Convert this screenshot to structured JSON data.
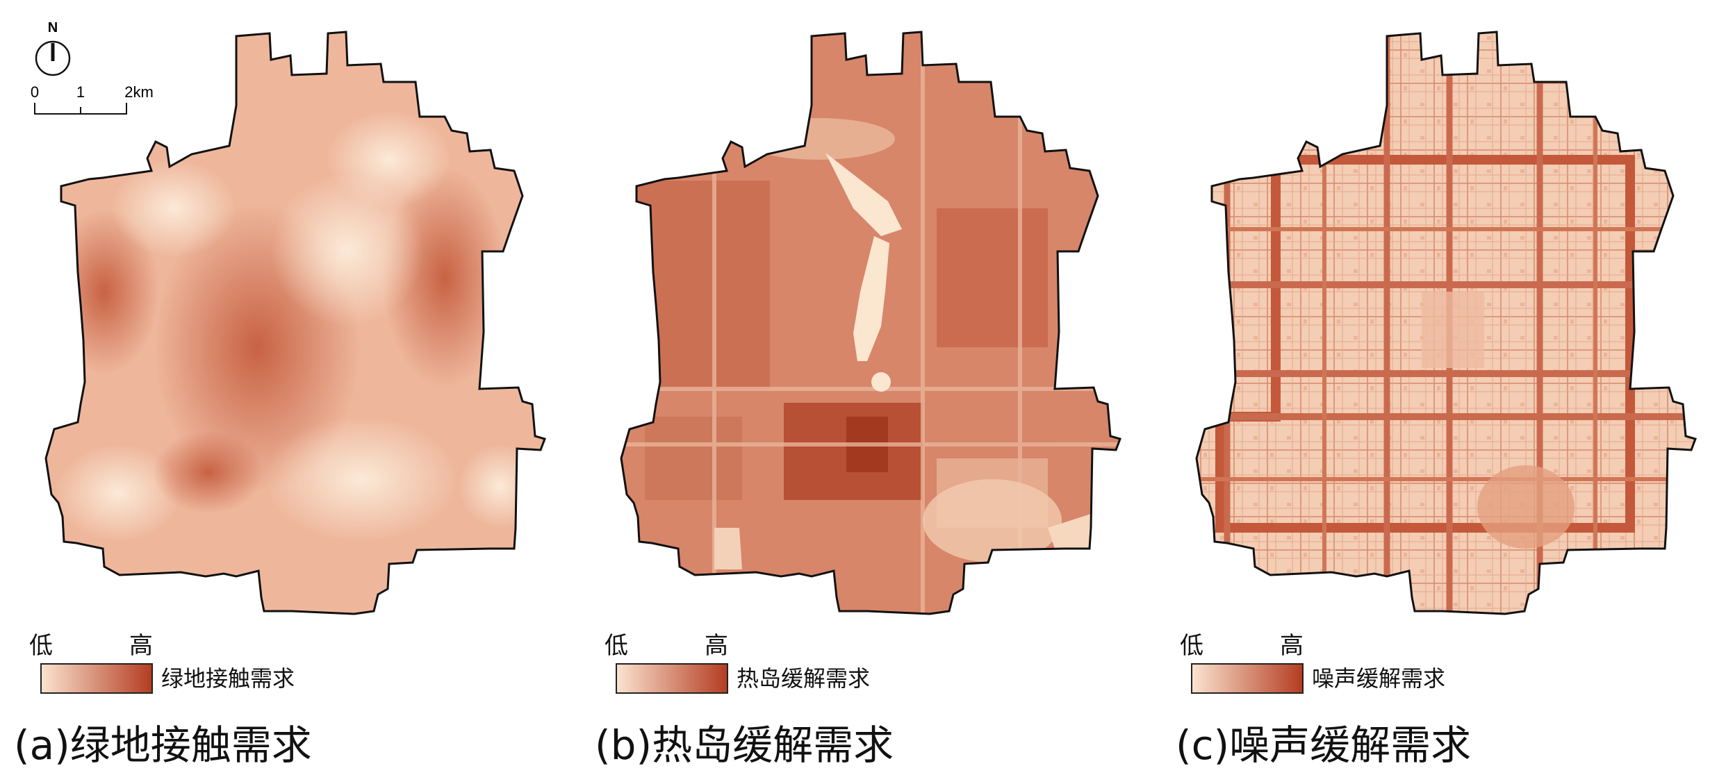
{
  "north_arrow": {
    "label": "N",
    "icon": "north-arrow-icon"
  },
  "scale_bar": {
    "ticks": [
      "0",
      "1",
      "2km"
    ]
  },
  "legend": {
    "low_label": "低",
    "high_label": "高"
  },
  "gradient": {
    "low_color": "#fae3cf",
    "high_color": "#b43d22"
  },
  "boundary_color": "#111111",
  "panels": [
    {
      "caption": "(a)绿地接触需求",
      "legend_name": "绿地接触需求",
      "pattern": "smooth-hotspots",
      "excluded_area_color": null
    },
    {
      "caption": "(b)热岛缓解需求",
      "legend_name": "热岛缓解需求",
      "pattern": "blocky-urban-heat",
      "excluded_area_color": "#fbe6d0"
    },
    {
      "caption": "(c)噪声缓解需求",
      "legend_name": "噪声缓解需求",
      "pattern": "road-network",
      "excluded_area_color": null
    }
  ]
}
